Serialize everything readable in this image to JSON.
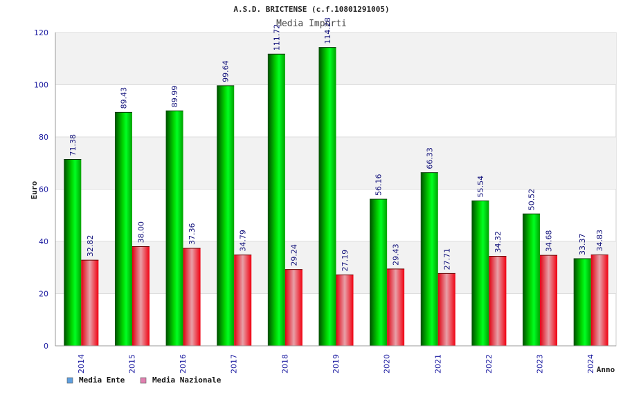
{
  "chart_data": {
    "type": "bar",
    "title": "A.S.D. BRICTENSE (c.f.10801291005)",
    "subtitle": "Media Importi",
    "xlabel": "Anno",
    "ylabel": "Euro",
    "ylim": [
      0,
      120
    ],
    "yticks": [
      "0",
      "20",
      "40",
      "60",
      "80",
      "100",
      "120"
    ],
    "categories": [
      "2014",
      "2015",
      "2016",
      "2017",
      "2018",
      "2019",
      "2020",
      "2021",
      "2022",
      "2023",
      "2024"
    ],
    "series": [
      {
        "name": "Media Ente",
        "values": [
          71.38,
          89.43,
          89.99,
          99.64,
          111.72,
          114.28,
          56.16,
          66.33,
          55.54,
          50.52,
          33.37
        ],
        "labels": [
          "71.38",
          "89.43",
          "89.99",
          "99.64",
          "111.72",
          "114.28",
          "56.16",
          "66.33",
          "55.54",
          "50.52",
          "33.37"
        ]
      },
      {
        "name": "Media Nazionale",
        "values": [
          32.82,
          38.0,
          37.36,
          34.79,
          29.24,
          27.19,
          29.43,
          27.71,
          34.32,
          34.68,
          34.83
        ],
        "labels": [
          "32.82",
          "38.00",
          "37.36",
          "34.79",
          "29.24",
          "27.19",
          "29.43",
          "27.71",
          "34.32",
          "34.68",
          "34.83"
        ]
      }
    ],
    "grid": true,
    "legend_position": "bottom-left",
    "colors": {
      "ente": "#00c800",
      "nazionale": "#e82020",
      "legend_ente": "#5fa0e0",
      "legend_nazionale": "#e080b0",
      "axis_text": "#1a1aa0",
      "label_text": "#10107a"
    }
  }
}
